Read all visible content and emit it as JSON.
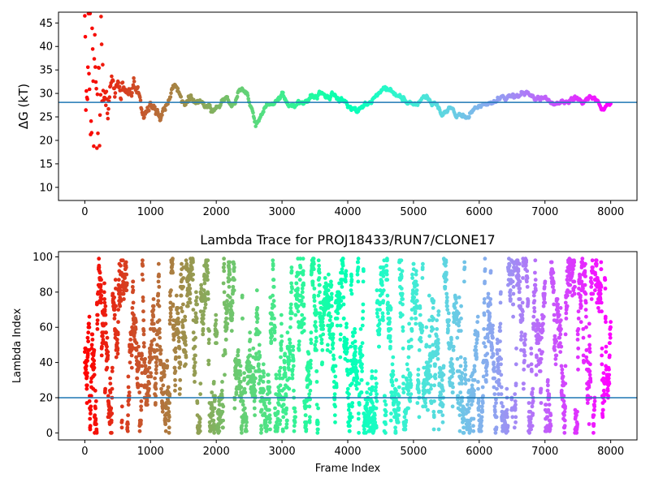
{
  "chart_data": [
    {
      "type": "scatter",
      "title": "",
      "xlabel": "",
      "ylabel": "ΔG (kT)",
      "xlim": [
        -400,
        8400
      ],
      "ylim": [
        7.2,
        47.3
      ],
      "xticks": [
        0,
        1000,
        2000,
        3000,
        4000,
        5000,
        6000,
        7000,
        8000
      ],
      "yticks": [
        10,
        15,
        20,
        25,
        30,
        35,
        40,
        45
      ],
      "hline": 28.1,
      "hline_color": "#1f77b4",
      "colormap": "rainbow (red at frame 0 → violet at frame 8000)",
      "trace": [
        [
          0,
          40
        ],
        [
          20,
          30
        ],
        [
          40,
          24
        ],
        [
          60,
          33
        ],
        [
          80,
          28
        ],
        [
          100,
          26
        ],
        [
          130,
          31
        ],
        [
          160,
          29
        ],
        [
          200,
          27
        ],
        [
          240,
          30
        ],
        [
          300,
          32
        ],
        [
          350,
          30
        ],
        [
          400,
          31
        ],
        [
          450,
          32
        ],
        [
          500,
          31
        ],
        [
          550,
          30
        ],
        [
          600,
          31
        ],
        [
          650,
          31.5
        ],
        [
          700,
          30.5
        ],
        [
          750,
          31.5
        ],
        [
          800,
          30
        ],
        [
          850,
          28
        ],
        [
          900,
          25.5
        ],
        [
          950,
          27
        ],
        [
          1000,
          28
        ],
        [
          1050,
          27
        ],
        [
          1100,
          26
        ],
        [
          1150,
          24
        ],
        [
          1200,
          27
        ],
        [
          1250,
          28.5
        ],
        [
          1300,
          29
        ],
        [
          1350,
          31
        ],
        [
          1400,
          31.5
        ],
        [
          1450,
          30
        ],
        [
          1500,
          28
        ],
        [
          1550,
          28.5
        ],
        [
          1600,
          29.5
        ],
        [
          1650,
          28.5
        ],
        [
          1700,
          28
        ],
        [
          1750,
          28.5
        ],
        [
          1800,
          28
        ],
        [
          1850,
          27.5
        ],
        [
          1900,
          27
        ],
        [
          1950,
          26.5
        ],
        [
          2000,
          27
        ],
        [
          2050,
          27.5
        ],
        [
          2100,
          28.5
        ],
        [
          2150,
          29
        ],
        [
          2200,
          28
        ],
        [
          2250,
          27.5
        ],
        [
          2300,
          28.5
        ],
        [
          2350,
          30
        ],
        [
          2400,
          31
        ],
        [
          2450,
          30.5
        ],
        [
          2500,
          28
        ],
        [
          2550,
          26.5
        ],
        [
          2600,
          23.5
        ],
        [
          2650,
          24.5
        ],
        [
          2700,
          26
        ],
        [
          2750,
          27
        ],
        [
          2800,
          27.5
        ],
        [
          2850,
          27.5
        ],
        [
          2900,
          28
        ],
        [
          2950,
          28.5
        ],
        [
          3000,
          30
        ],
        [
          3050,
          28.5
        ],
        [
          3100,
          27.5
        ],
        [
          3150,
          27.5
        ],
        [
          3200,
          28
        ],
        [
          3250,
          28.5
        ],
        [
          3300,
          28
        ],
        [
          3350,
          28.5
        ],
        [
          3400,
          29
        ],
        [
          3450,
          29.5
        ],
        [
          3500,
          29.5
        ],
        [
          3550,
          30
        ],
        [
          3600,
          30.5
        ],
        [
          3650,
          29.5
        ],
        [
          3700,
          29
        ],
        [
          3750,
          29.5
        ],
        [
          3800,
          29.5
        ],
        [
          3850,
          29
        ],
        [
          3900,
          28.5
        ],
        [
          3950,
          27.5
        ],
        [
          4000,
          27
        ],
        [
          4050,
          27.5
        ],
        [
          4100,
          26.5
        ],
        [
          4150,
          26.5
        ],
        [
          4200,
          27
        ],
        [
          4250,
          27.5
        ],
        [
          4300,
          28
        ],
        [
          4350,
          28.5
        ],
        [
          4400,
          29
        ],
        [
          4450,
          29.5
        ],
        [
          4500,
          30.5
        ],
        [
          4550,
          31
        ],
        [
          4600,
          31
        ],
        [
          4650,
          30.5
        ],
        [
          4700,
          30
        ],
        [
          4750,
          29.5
        ],
        [
          4800,
          29
        ],
        [
          4850,
          28.5
        ],
        [
          4900,
          28
        ],
        [
          4950,
          28
        ],
        [
          5000,
          28
        ],
        [
          5050,
          28
        ],
        [
          5100,
          28.5
        ],
        [
          5150,
          29
        ],
        [
          5200,
          29
        ],
        [
          5250,
          28.5
        ],
        [
          5300,
          28
        ],
        [
          5350,
          27.5
        ],
        [
          5400,
          26
        ],
        [
          5450,
          25.5
        ],
        [
          5500,
          26
        ],
        [
          5550,
          27
        ],
        [
          5600,
          26.5
        ],
        [
          5650,
          25
        ],
        [
          5700,
          25
        ],
        [
          5750,
          25
        ],
        [
          5800,
          25
        ],
        [
          5850,
          25.5
        ],
        [
          5900,
          26.5
        ],
        [
          5950,
          27
        ],
        [
          6000,
          27.5
        ],
        [
          6050,
          27.5
        ],
        [
          6100,
          27.5
        ],
        [
          6150,
          28
        ],
        [
          6200,
          28
        ],
        [
          6250,
          28.5
        ],
        [
          6300,
          29
        ],
        [
          6350,
          29.5
        ],
        [
          6400,
          29
        ],
        [
          6450,
          29.5
        ],
        [
          6500,
          29.5
        ],
        [
          6550,
          29.5
        ],
        [
          6600,
          29.5
        ],
        [
          6650,
          30
        ],
        [
          6700,
          30
        ],
        [
          6750,
          30.5
        ],
        [
          6800,
          29.5
        ],
        [
          6850,
          29
        ],
        [
          6900,
          29
        ],
        [
          6950,
          29
        ],
        [
          7000,
          29
        ],
        [
          7050,
          28.5
        ],
        [
          7100,
          28.5
        ],
        [
          7150,
          28.5
        ],
        [
          7200,
          28
        ],
        [
          7250,
          28
        ],
        [
          7300,
          28
        ],
        [
          7350,
          28
        ],
        [
          7400,
          28.5
        ],
        [
          7450,
          28.5
        ],
        [
          7500,
          28.5
        ],
        [
          7550,
          28.5
        ],
        [
          7600,
          28.5
        ],
        [
          7650,
          29
        ],
        [
          7700,
          29
        ],
        [
          7750,
          29
        ],
        [
          7800,
          28.5
        ],
        [
          7850,
          27
        ],
        [
          7900,
          27
        ],
        [
          7950,
          27.5
        ],
        [
          8000,
          27.5
        ]
      ],
      "noise_amplitude": [
        [
          0,
          16
        ],
        [
          200,
          8
        ],
        [
          500,
          3
        ],
        [
          900,
          1.5
        ],
        [
          2000,
          0.8
        ],
        [
          8000,
          0.6
        ]
      ]
    },
    {
      "type": "scatter",
      "title": "Lambda Trace for PROJ18433/RUN7/CLONE17",
      "xlabel": "Frame Index",
      "ylabel": "Lambda Index",
      "xlim": [
        -400,
        8400
      ],
      "ylim": [
        -4,
        103
      ],
      "xticks": [
        0,
        1000,
        2000,
        3000,
        4000,
        5000,
        6000,
        7000,
        8000
      ],
      "yticks": [
        0,
        20,
        40,
        60,
        80,
        100
      ],
      "hline": 20,
      "hline_color": "#1f77b4",
      "n_points": 8000,
      "lambda_range": [
        0,
        99
      ],
      "colormap": "rainbow (red at frame 0 → violet at frame 8000)"
    }
  ]
}
